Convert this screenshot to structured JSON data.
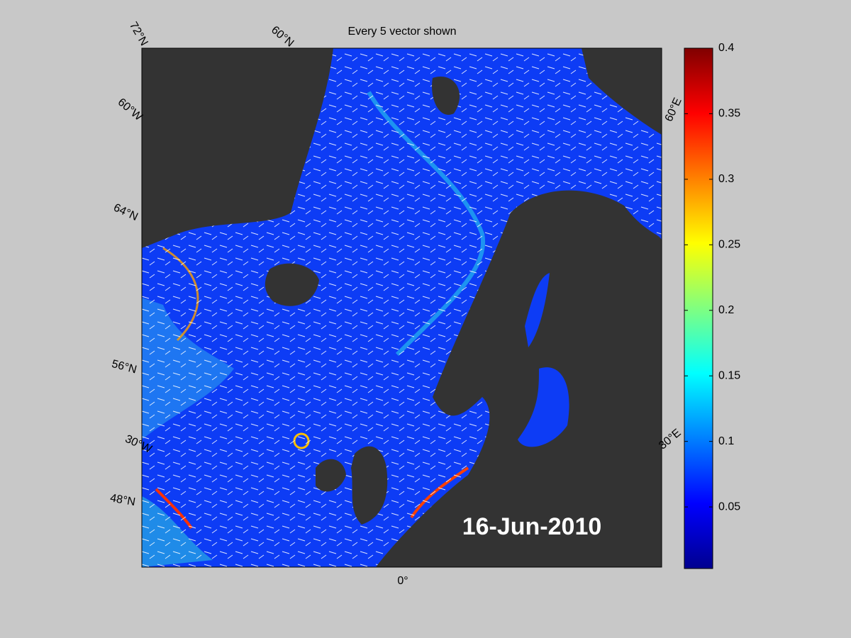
{
  "title": "Every 5 vector shown",
  "date_label": "16-Jun-2010",
  "graticule_labels": [
    "72°N",
    "60°N",
    "60°W",
    "64°N",
    "56°N",
    "30°W",
    "48°N",
    "0°",
    "60°E",
    "30°E"
  ],
  "colorbar": {
    "type": "colorbar",
    "clim": [
      0.003,
      0.4
    ],
    "ticks": [
      0.05,
      0.1,
      0.15,
      0.2,
      0.25,
      0.3,
      0.35,
      0.4
    ],
    "colormap": [
      "#00008f",
      "#0000ff",
      "#0080ff",
      "#00ffff",
      "#80ff80",
      "#ffff00",
      "#ff8000",
      "#ff0000",
      "#800000"
    ]
  }
}
